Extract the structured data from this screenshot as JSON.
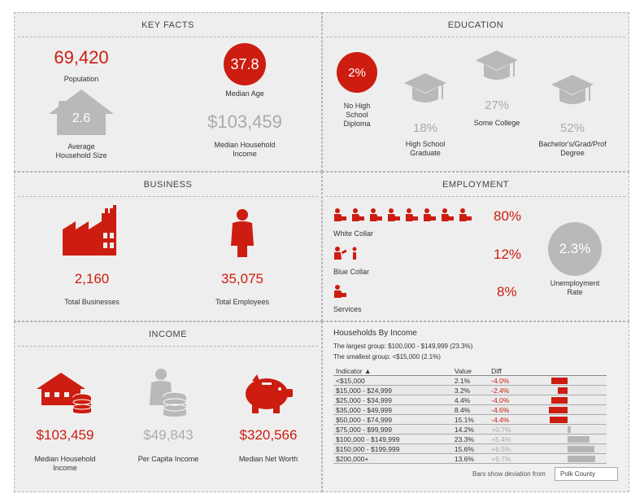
{
  "key_facts": {
    "title": "KEY FACTS",
    "population_value": "69,420",
    "population_label": "Population",
    "median_age_value": "37.8",
    "median_age_label": "Median Age",
    "household_size_value": "2.6",
    "household_size_label_1": "Average",
    "household_size_label_2": "Household Size",
    "median_income_value": "$103,459",
    "median_income_label_1": "Median Household",
    "median_income_label_2": "Income"
  },
  "education": {
    "title": "EDUCATION",
    "no_hs_value": "2%",
    "no_hs_label": [
      "No High",
      "School",
      "Diploma"
    ],
    "hs_value": "18%",
    "hs_label": [
      "High School",
      "Graduate"
    ],
    "college_value": "27%",
    "college_label": "Some College",
    "bachelor_value": "52%",
    "bachelor_label": [
      "Bachelor's/Grad/Prof",
      "Degree"
    ]
  },
  "business": {
    "title": "BUSINESS",
    "businesses_value": "2,160",
    "businesses_label": "Total Businesses",
    "employees_value": "35,075",
    "employees_label": "Total Employees"
  },
  "employment": {
    "title": "EMPLOYMENT",
    "white_collar_value": "80%",
    "white_collar_label": "White Collar",
    "blue_collar_value": "12%",
    "blue_collar_label": "Blue Collar",
    "services_value": "8%",
    "services_label": "Services",
    "unemployment_value": "2.3%",
    "unemployment_label_1": "Unemployment",
    "unemployment_label_2": "Rate"
  },
  "income": {
    "title": "INCOME",
    "median_household_value": "$103,459",
    "median_household_label": [
      "Median Household",
      "Income"
    ],
    "per_capita_value": "$49,843",
    "per_capita_label": "Per Capita Income",
    "net_worth_value": "$320,566",
    "net_worth_label": "Median Net Worth"
  },
  "households": {
    "title": "Households By Income",
    "largest": "The largest group: $100,000 - $149,999 (23.3%)",
    "smallest": "The smallest group: <$15,000 (2.1%)",
    "headers": [
      "Indicator ▲",
      "Value",
      "Diff"
    ],
    "footer": "Bars show deviation from",
    "compare_area": "Polk County",
    "rows": [
      {
        "indicator": "<$15,000",
        "value": "2.1%",
        "diff": "-4.0%",
        "d": -4.0
      },
      {
        "indicator": "$15,000 - $24,999",
        "value": "3.2%",
        "diff": "-2.4%",
        "d": -2.4
      },
      {
        "indicator": "$25,000 - $34,999",
        "value": "4.4%",
        "diff": "-4.0%",
        "d": -4.0
      },
      {
        "indicator": "$35,000 - $49,999",
        "value": "8.4%",
        "diff": "-4.6%",
        "d": -4.6
      },
      {
        "indicator": "$50,000 - $74,999",
        "value": "15.1%",
        "diff": "-4.4%",
        "d": -4.4
      },
      {
        "indicator": "$75,000 - $99,999",
        "value": "14.2%",
        "diff": "+0.7%",
        "d": 0.7
      },
      {
        "indicator": "$100,000 - $149,999",
        "value": "23.3%",
        "diff": "+5.4%",
        "d": 5.4
      },
      {
        "indicator": "$150,000 - $199,999",
        "value": "15.6%",
        "diff": "+6.5%",
        "d": 6.5
      },
      {
        "indicator": "$200,000+",
        "value": "13.6%",
        "diff": "+6.7%",
        "d": 6.7
      }
    ]
  },
  "colors": {
    "accent": "#cc1d10",
    "grey": "#aaaaaa",
    "panel": "#eeeeee"
  }
}
